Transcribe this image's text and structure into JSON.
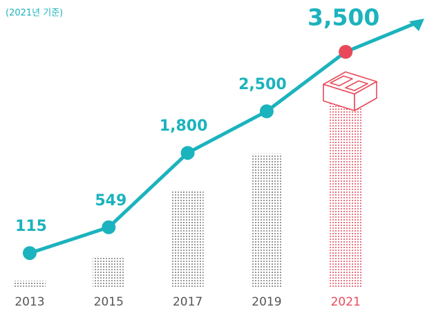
{
  "chart_data": {
    "type": "line",
    "subtitle": "(2021년 기준)",
    "categories": [
      "2013",
      "2015",
      "2017",
      "2019",
      "2021"
    ],
    "values": [
      115,
      549,
      1800,
      2500,
      3500
    ],
    "value_labels": [
      "115",
      "549",
      "1,800",
      "2,500",
      "3,500"
    ],
    "color": "#1bb3bd",
    "bar_color": "#777777",
    "highlight_color": "#e8495a"
  }
}
